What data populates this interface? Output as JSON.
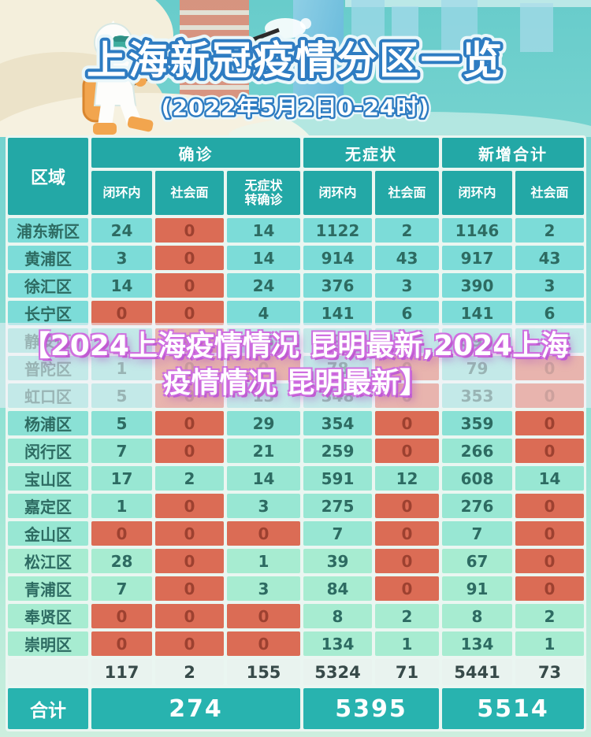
{
  "poster": {
    "title": "上海新冠疫情分区一览",
    "subtitle": "(2022年5月2日0-24时)",
    "illustration": "hazmat-sprayer"
  },
  "watermark": {
    "text": "【2024上海疫情情况 昆明最新,2024上海疫情情况 昆明最新】"
  },
  "table": {
    "region_header": "区域",
    "groups": [
      {
        "label": "确诊",
        "span": 3
      },
      {
        "label": "无症状",
        "span": 2
      },
      {
        "label": "新增合计",
        "span": 2
      }
    ],
    "subheaders": [
      "闭环内",
      "社会面",
      "无症状\n转确诊",
      "闭环内",
      "社会面",
      "闭环内",
      "社会面"
    ],
    "rows": [
      {
        "region": "浦东新区",
        "values": [
          "24",
          "0",
          "14",
          "1122",
          "2",
          "1146",
          "2"
        ]
      },
      {
        "region": "黄浦区",
        "values": [
          "3",
          "0",
          "14",
          "914",
          "43",
          "917",
          "43"
        ]
      },
      {
        "region": "徐汇区",
        "values": [
          "14",
          "0",
          "24",
          "376",
          "3",
          "390",
          "3"
        ]
      },
      {
        "region": "长宁区",
        "values": [
          "0",
          "0",
          "4",
          "141",
          "6",
          "141",
          "6"
        ]
      },
      {
        "region": "静安区",
        "values": [
          "5",
          "0",
          "15",
          "594",
          "2",
          "599",
          "2"
        ]
      },
      {
        "region": "普陀区",
        "values": [
          "1",
          "0",
          "0",
          "78",
          "0",
          "79",
          "0"
        ]
      },
      {
        "region": "虹口区",
        "values": [
          "5",
          "0",
          "13",
          "348",
          "0",
          "353",
          "0"
        ]
      },
      {
        "region": "杨浦区",
        "values": [
          "5",
          "0",
          "29",
          "354",
          "0",
          "359",
          "0"
        ]
      },
      {
        "region": "闵行区",
        "values": [
          "7",
          "0",
          "21",
          "259",
          "0",
          "266",
          "0"
        ]
      },
      {
        "region": "宝山区",
        "values": [
          "17",
          "2",
          "14",
          "591",
          "12",
          "608",
          "14"
        ]
      },
      {
        "region": "嘉定区",
        "values": [
          "1",
          "0",
          "3",
          "275",
          "0",
          "276",
          "0"
        ]
      },
      {
        "region": "金山区",
        "values": [
          "0",
          "0",
          "0",
          "7",
          "0",
          "7",
          "0"
        ]
      },
      {
        "region": "松江区",
        "values": [
          "28",
          "0",
          "1",
          "39",
          "0",
          "67",
          "0"
        ]
      },
      {
        "region": "青浦区",
        "values": [
          "7",
          "0",
          "3",
          "84",
          "0",
          "91",
          "0"
        ]
      },
      {
        "region": "奉贤区",
        "values": [
          "0",
          "0",
          "0",
          "8",
          "2",
          "8",
          "2"
        ]
      },
      {
        "region": "崇明区",
        "values": [
          "0",
          "0",
          "0",
          "134",
          "1",
          "134",
          "1"
        ]
      }
    ],
    "subtotal": {
      "values": [
        "117",
        "2",
        "155",
        "5324",
        "71",
        "5441",
        "73"
      ]
    },
    "total": {
      "label": "合计",
      "values": [
        "274",
        "5395",
        "5514"
      ]
    }
  },
  "colors": {
    "header_teal": "#23a8a6",
    "cell_teal": "#7cdcd8",
    "cell_mint": "#a7ecd1",
    "zero_red": "#db6c55",
    "total_teal": "#28b3af",
    "title_blue": "#2e7cc2",
    "watermark_purple": "#c05ad2"
  },
  "chart_data": {
    "type": "table",
    "title": "上海新冠疫情分区一览",
    "subtitle": "(2022年5月2日0-24时)",
    "columns": [
      "区域",
      "确诊-闭环内",
      "确诊-社会面",
      "确诊-无症状转确诊",
      "无症状-闭环内",
      "无症状-社会面",
      "新增合计-闭环内",
      "新增合计-社会面"
    ],
    "rows": [
      [
        "浦东新区",
        24,
        0,
        14,
        1122,
        2,
        1146,
        2
      ],
      [
        "黄浦区",
        3,
        0,
        14,
        914,
        43,
        917,
        43
      ],
      [
        "徐汇区",
        14,
        0,
        24,
        376,
        3,
        390,
        3
      ],
      [
        "长宁区",
        0,
        0,
        4,
        141,
        6,
        141,
        6
      ],
      [
        "静安区",
        5,
        0,
        15,
        594,
        2,
        599,
        2
      ],
      [
        "普陀区",
        1,
        0,
        0,
        78,
        0,
        79,
        0
      ],
      [
        "虹口区",
        5,
        0,
        13,
        348,
        0,
        353,
        0
      ],
      [
        "杨浦区",
        5,
        0,
        29,
        354,
        0,
        359,
        0
      ],
      [
        "闵行区",
        7,
        0,
        21,
        259,
        0,
        266,
        0
      ],
      [
        "宝山区",
        17,
        2,
        14,
        591,
        12,
        608,
        14
      ],
      [
        "嘉定区",
        1,
        0,
        3,
        275,
        0,
        276,
        0
      ],
      [
        "金山区",
        0,
        0,
        0,
        7,
        0,
        7,
        0
      ],
      [
        "松江区",
        28,
        0,
        1,
        39,
        0,
        67,
        0
      ],
      [
        "青浦区",
        7,
        0,
        3,
        84,
        0,
        91,
        0
      ],
      [
        "奉贤区",
        0,
        0,
        0,
        8,
        2,
        8,
        2
      ],
      [
        "崇明区",
        0,
        0,
        0,
        134,
        1,
        134,
        1
      ]
    ],
    "subtotal": [
      117,
      2,
      155,
      5324,
      71,
      5441,
      73
    ],
    "grand_total": {
      "确诊": 274,
      "无症状": 5395,
      "新增合计": 5514
    },
    "highlight_rule": "zero values shown on red cells"
  }
}
